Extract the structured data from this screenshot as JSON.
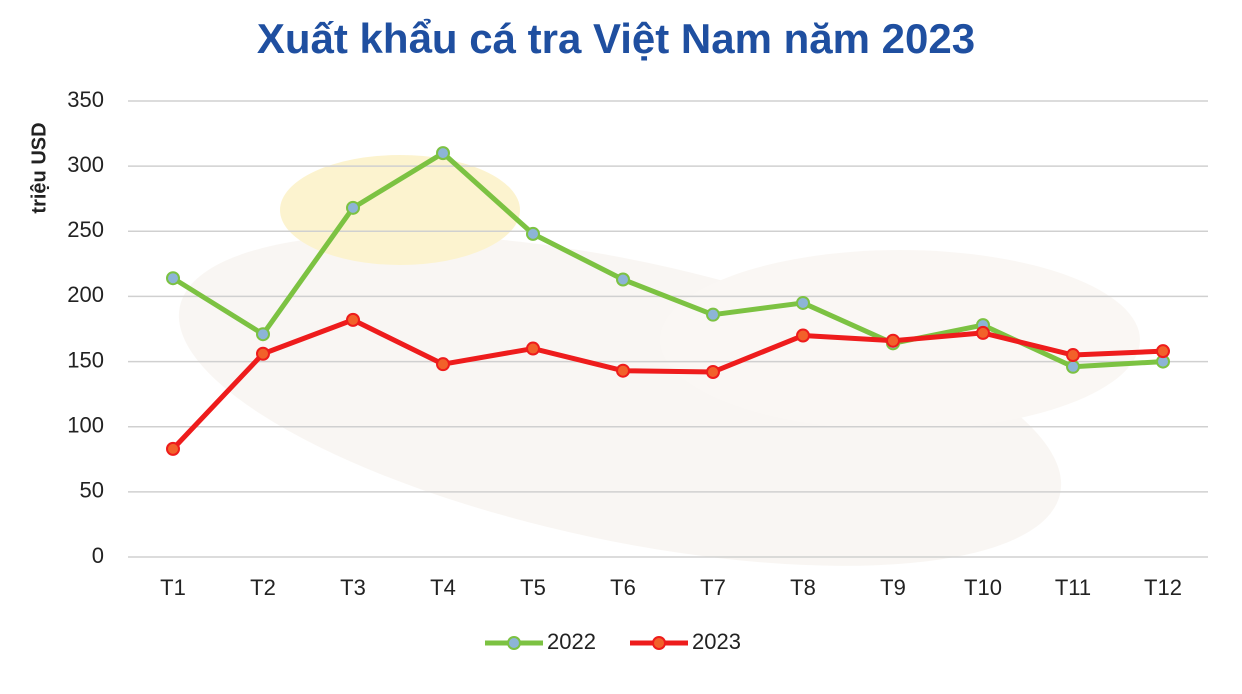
{
  "chart_data": {
    "type": "line",
    "title": "Xuất khẩu cá tra Việt Nam năm 2023",
    "y_label": "triệu USD",
    "categories": [
      "T1",
      "T2",
      "T3",
      "T4",
      "T5",
      "T6",
      "T7",
      "T8",
      "T9",
      "T10",
      "T11",
      "T12"
    ],
    "series": [
      {
        "name": "2022",
        "color": "#7cc242",
        "marker_color": "#8db4d6",
        "values": [
          214,
          171,
          268,
          310,
          248,
          213,
          186,
          195,
          164,
          178,
          146,
          150
        ]
      },
      {
        "name": "2023",
        "color": "#ee1c1c",
        "marker_color": "#f2612a",
        "values": [
          83,
          156,
          182,
          148,
          160,
          143,
          142,
          170,
          166,
          172,
          155,
          158
        ]
      }
    ],
    "ylim": [
      0,
      350
    ],
    "yticks": [
      0,
      50,
      100,
      150,
      200,
      250,
      300,
      350
    ],
    "grid": true
  }
}
